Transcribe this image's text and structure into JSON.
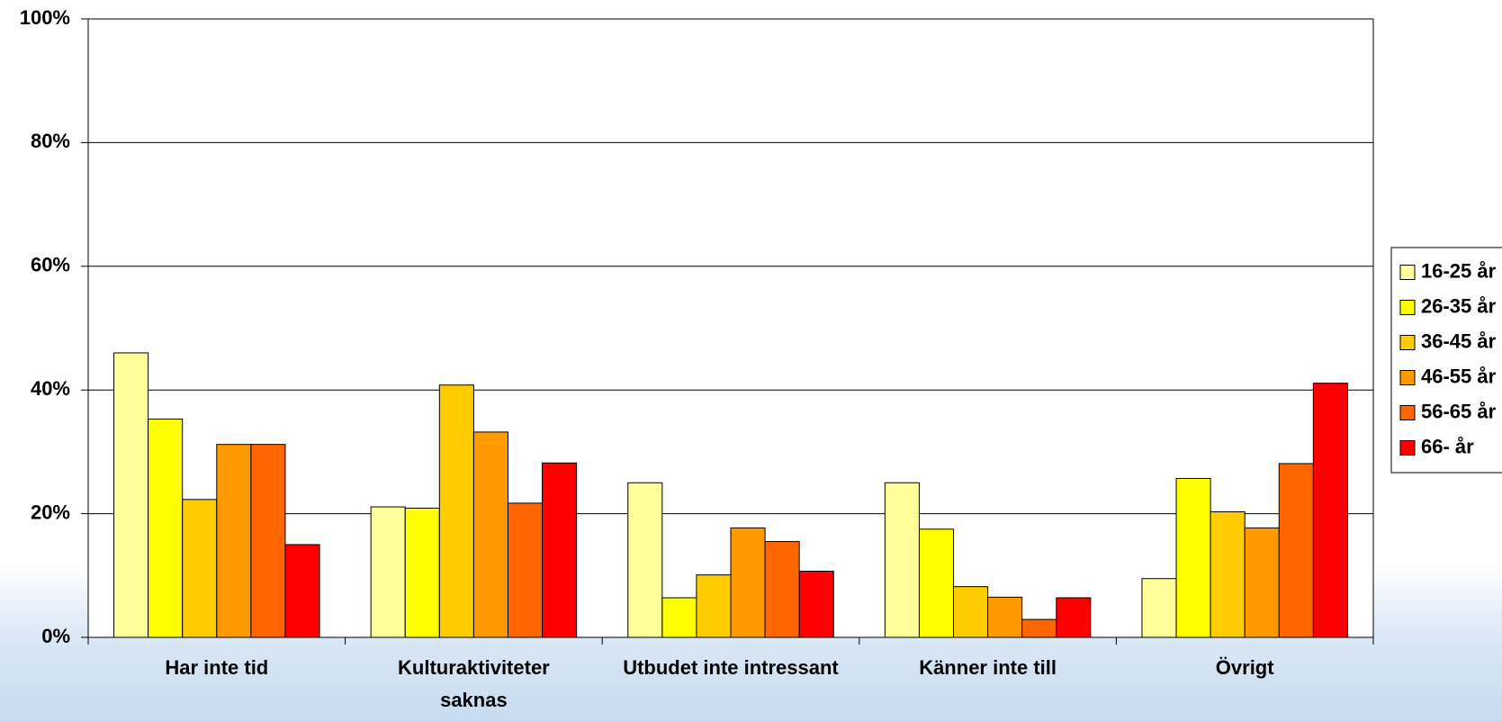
{
  "chart_data": {
    "type": "bar",
    "categories": [
      "Har inte tid",
      "Kulturaktiviteter saknas",
      "Utbudet inte intressant",
      "Känner inte till",
      "Övrigt"
    ],
    "series": [
      {
        "name": "16-25 år",
        "color": "#ffff99",
        "values": [
          46.0,
          21.1,
          25.0,
          25.0,
          9.5
        ]
      },
      {
        "name": "26-35 år",
        "color": "#ffff00",
        "values": [
          35.3,
          20.9,
          6.4,
          17.5,
          25.7
        ]
      },
      {
        "name": "36-45 år",
        "color": "#ffcc00",
        "values": [
          22.3,
          40.8,
          10.1,
          8.2,
          20.3
        ]
      },
      {
        "name": "46-55 år",
        "color": "#ff9900",
        "values": [
          31.2,
          33.2,
          17.7,
          6.5,
          17.7
        ]
      },
      {
        "name": "56-65 år",
        "color": "#ff6600",
        "values": [
          31.2,
          21.7,
          15.5,
          2.9,
          28.1
        ]
      },
      {
        "name": "66- år",
        "color": "#ff0000",
        "values": [
          15.0,
          28.2,
          10.7,
          6.4,
          41.1
        ]
      }
    ],
    "ylim": [
      0,
      100
    ],
    "yticks": [
      {
        "value": 0,
        "label": "0%"
      },
      {
        "value": 20,
        "label": "20%"
      },
      {
        "value": 40,
        "label": "40%"
      },
      {
        "value": 60,
        "label": "60%"
      },
      {
        "value": 80,
        "label": "80%"
      },
      {
        "value": 100,
        "label": "100%"
      }
    ],
    "grid": true,
    "legend": "right"
  }
}
